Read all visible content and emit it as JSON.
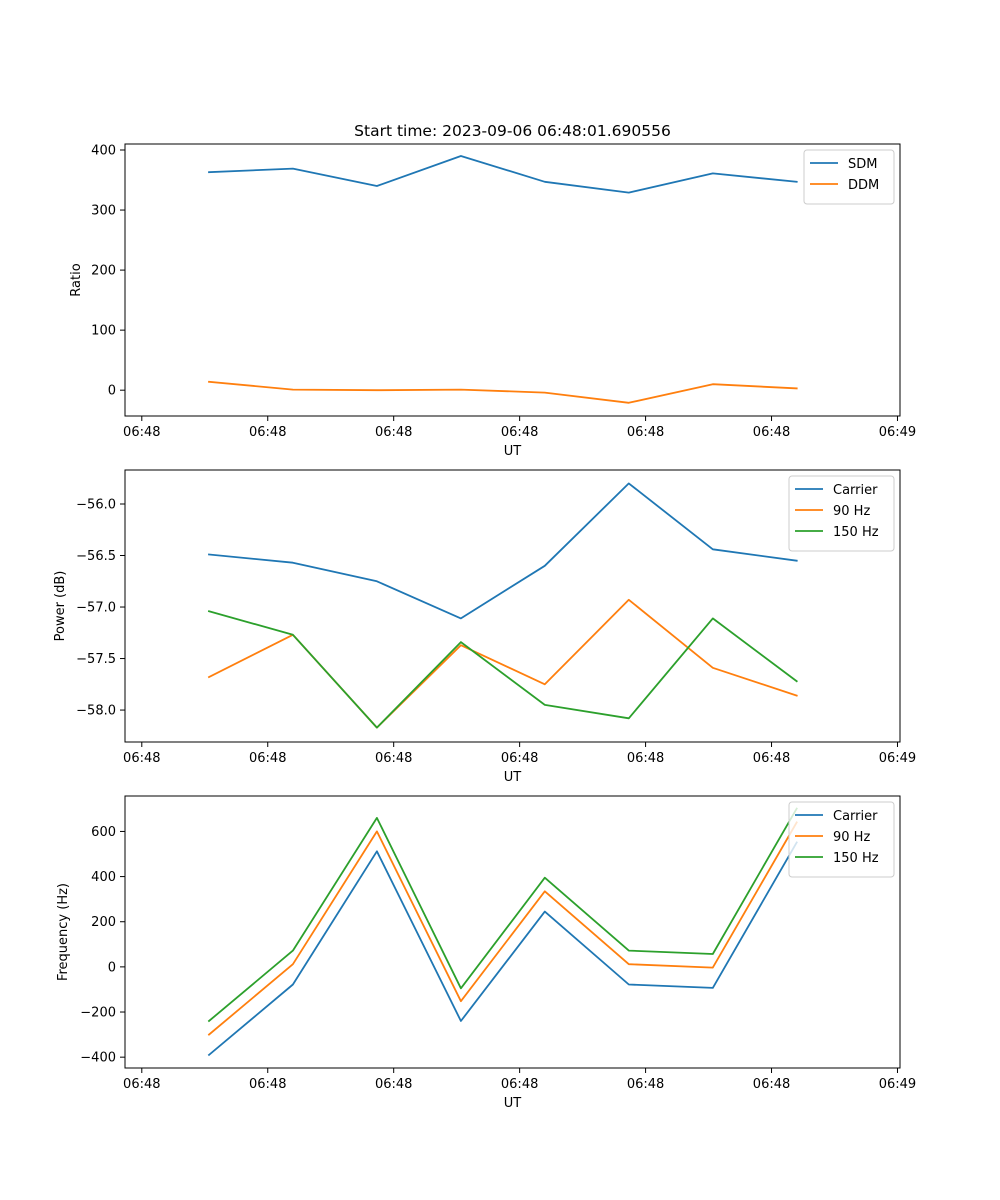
{
  "chart_data": [
    {
      "type": "line",
      "title": "Start time: 2023-09-06 06:48:01.690556",
      "xlabel": "UT",
      "ylabel": "Ratio",
      "x": [
        1,
        2,
        3,
        4,
        5,
        6,
        7,
        8
      ],
      "xlim": [
        0,
        9.23
      ],
      "xticks": [
        0.2,
        1.7,
        3.2,
        4.7,
        6.2,
        7.7,
        9.2
      ],
      "xtick_labels": [
        "06:48",
        "06:48",
        "06:48",
        "06:48",
        "06:48",
        "06:48",
        "06:49"
      ],
      "ylim": [
        -43,
        410
      ],
      "yticks": [
        0,
        100,
        200,
        300,
        400
      ],
      "ytick_labels": [
        "0",
        "100",
        "200",
        "300",
        "400"
      ],
      "legend": "top-right",
      "series": [
        {
          "name": "SDM",
          "color": "#1f77b4",
          "values": [
            363,
            369,
            340,
            390,
            347,
            329,
            361,
            347
          ]
        },
        {
          "name": "DDM",
          "color": "#ff7f0e",
          "values": [
            14,
            1,
            0,
            1,
            -4,
            -21,
            10,
            3
          ]
        }
      ]
    },
    {
      "type": "line",
      "title": "",
      "xlabel": "UT",
      "ylabel": "Power (dB)",
      "x": [
        1,
        2,
        3,
        4,
        5,
        6,
        7,
        8
      ],
      "xlim": [
        0,
        9.23
      ],
      "xticks": [
        0.2,
        1.7,
        3.2,
        4.7,
        6.2,
        7.7,
        9.2
      ],
      "xtick_labels": [
        "06:48",
        "06:48",
        "06:48",
        "06:48",
        "06:48",
        "06:48",
        "06:49"
      ],
      "ylim": [
        -58.31,
        -55.67
      ],
      "yticks": [
        -56.0,
        -56.5,
        -57.0,
        -57.5,
        -58.0
      ],
      "ytick_labels": [
        "−56.0",
        "−56.5",
        "−57.0",
        "−57.5",
        "−58.0"
      ],
      "legend": "top-right",
      "series": [
        {
          "name": "Carrier",
          "color": "#1f77b4",
          "values": [
            -56.49,
            -56.57,
            -56.75,
            -57.11,
            -56.6,
            -55.8,
            -56.44,
            -56.55
          ]
        },
        {
          "name": "90 Hz",
          "color": "#ff7f0e",
          "values": [
            -57.68,
            -57.27,
            -58.17,
            -57.37,
            -57.75,
            -56.93,
            -57.59,
            -57.86
          ]
        },
        {
          "name": "150 Hz",
          "color": "#2ca02c",
          "values": [
            -57.04,
            -57.27,
            -58.17,
            -57.34,
            -57.95,
            -58.08,
            -57.11,
            -57.72
          ]
        }
      ]
    },
    {
      "type": "line",
      "title": "",
      "xlabel": "UT",
      "ylabel": "Frequency (Hz)",
      "x": [
        1,
        2,
        3,
        4,
        5,
        6,
        7,
        8
      ],
      "xlim": [
        0,
        9.23
      ],
      "xticks": [
        0.2,
        1.7,
        3.2,
        4.7,
        6.2,
        7.7,
        9.2
      ],
      "xtick_labels": [
        "06:48",
        "06:48",
        "06:48",
        "06:48",
        "06:48",
        "06:48",
        "06:49"
      ],
      "ylim": [
        -448,
        757
      ],
      "yticks": [
        -400,
        -200,
        0,
        200,
        400,
        600
      ],
      "ytick_labels": [
        "−400",
        "−200",
        "0",
        "200",
        "400",
        "600"
      ],
      "legend": "top-right",
      "series": [
        {
          "name": "Carrier",
          "color": "#1f77b4",
          "values": [
            -390,
            -78,
            512,
            -240,
            245,
            -78,
            -93,
            551
          ]
        },
        {
          "name": "90 Hz",
          "color": "#ff7f0e",
          "values": [
            -300,
            12,
            600,
            -152,
            335,
            12,
            -3,
            640
          ]
        },
        {
          "name": "150 Hz",
          "color": "#2ca02c",
          "values": [
            -240,
            72,
            660,
            -95,
            395,
            72,
            57,
            701
          ]
        }
      ]
    }
  ]
}
